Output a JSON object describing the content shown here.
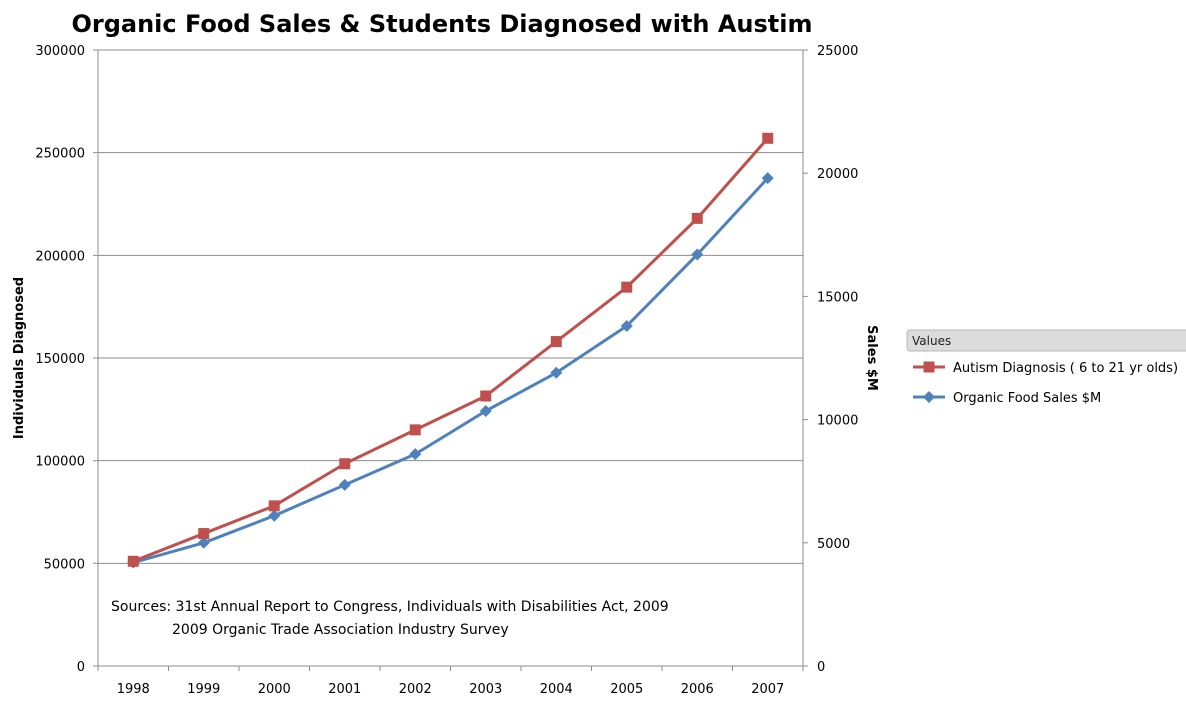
{
  "chart_data": {
    "type": "line",
    "title": "Organic Food Sales & Students Diagnosed with Austim",
    "xlabel": "",
    "ylabel": "Individuals Diagnosed",
    "y2label": "Sales $M",
    "categories": [
      "1998",
      "1999",
      "2000",
      "2001",
      "2002",
      "2003",
      "2004",
      "2005",
      "2006",
      "2007"
    ],
    "ylim": [
      0,
      300000
    ],
    "y2lim": [
      0,
      25000
    ],
    "yticks": [
      "0",
      "50000",
      "100000",
      "150000",
      "200000",
      "250000",
      "300000"
    ],
    "y2ticks": [
      "0",
      "5000",
      "10000",
      "15000",
      "20000",
      "25000"
    ],
    "grid": true,
    "legend_placement": "right",
    "legend_header": "Values",
    "series": [
      {
        "name": "Autism Diagnosis ( 6 to 21 yr olds)",
        "axis": "left",
        "color": "#C0504D",
        "marker": "square",
        "values": [
          51000,
          64500,
          78000,
          98500,
          115000,
          131500,
          158000,
          184500,
          218000,
          257000
        ]
      },
      {
        "name": "Organic Food Sales $M",
        "axis": "right",
        "color": "#4F81BD",
        "marker": "diamond",
        "values": [
          4200,
          5000,
          6100,
          7350,
          8600,
          10350,
          11900,
          13800,
          16700,
          19800
        ]
      }
    ],
    "annotations": [
      "Sources: 31st Annual  Report to Congress, Individuals with Disabilities Act, 2009",
      "2009 Organic Trade Association Industry Survey"
    ]
  }
}
